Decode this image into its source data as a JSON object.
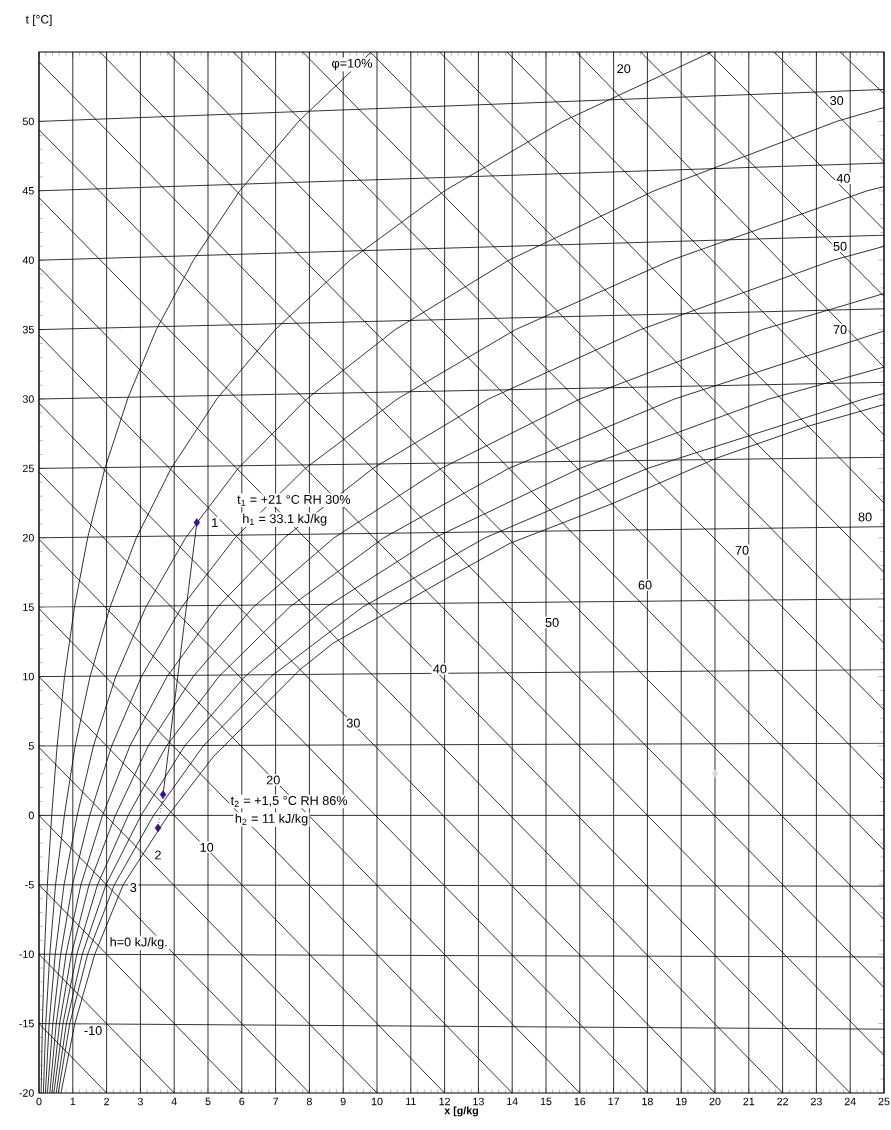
{
  "chart_data": {
    "type": "line",
    "xlabel": "x [g/kg",
    "ylabel": "t [°C]",
    "xlim": [
      0,
      25
    ],
    "ylim": [
      -20,
      55
    ],
    "xticks": [
      0,
      1,
      2,
      3,
      4,
      5,
      6,
      7,
      8,
      9,
      10,
      11,
      12,
      13,
      14,
      15,
      16,
      17,
      18,
      19,
      20,
      21,
      22,
      23,
      24,
      25
    ],
    "yticks": [
      -20,
      -15,
      -10,
      -5,
      0,
      5,
      10,
      15,
      20,
      25,
      30,
      35,
      40,
      45,
      50
    ],
    "grid": "x",
    "series": [
      {
        "color": "#000000",
        "x": [
          0,
          25
        ],
        "values": [
          50,
          52.3
        ]
      },
      {
        "color": "#000000",
        "x": [
          0,
          25
        ],
        "values": [
          45,
          47.0
        ]
      },
      {
        "color": "#000000",
        "x": [
          0,
          25
        ],
        "values": [
          40,
          41.8
        ]
      },
      {
        "color": "#000000",
        "x": [
          0,
          25
        ],
        "values": [
          35,
          36.5
        ]
      },
      {
        "color": "#000000",
        "x": [
          0,
          25
        ],
        "values": [
          30,
          31.2
        ]
      },
      {
        "color": "#000000",
        "x": [
          0,
          25
        ],
        "values": [
          25,
          25.8
        ]
      },
      {
        "color": "#000000",
        "x": [
          0,
          25
        ],
        "values": [
          20,
          20.8
        ]
      },
      {
        "color": "#000000",
        "x": [
          0,
          25
        ],
        "values": [
          15,
          15.6
        ]
      },
      {
        "color": "#000000",
        "x": [
          0,
          25
        ],
        "values": [
          10,
          10.5
        ]
      },
      {
        "color": "#000000",
        "x": [
          0,
          25
        ],
        "values": [
          5,
          5.2
        ]
      },
      {
        "color": "#000000",
        "x": [
          0,
          25
        ],
        "values": [
          0,
          0
        ]
      },
      {
        "color": "#000000",
        "x": [
          0,
          25
        ],
        "values": [
          -5,
          -5.1
        ]
      },
      {
        "color": "#000000",
        "x": [
          0,
          25
        ],
        "values": [
          -10,
          -10.2
        ]
      },
      {
        "color": "#000000",
        "x": [
          0,
          25
        ],
        "values": [
          -15,
          -15.4
        ]
      },
      {
        "color": "#000000",
        "x": [
          0,
          2
        ],
        "values": [
          -15,
          -20
        ]
      },
      {
        "color": "#000000",
        "x": [
          0,
          4
        ],
        "values": [
          -10,
          -20
        ]
      },
      {
        "color": "#000000",
        "x": [
          0,
          6
        ],
        "values": [
          -5,
          -20
        ]
      },
      {
        "color": "#000000",
        "x": [
          0,
          8
        ],
        "values": [
          0,
          -20
        ]
      },
      {
        "color": "#000000",
        "x": [
          0,
          10
        ],
        "values": [
          4.9,
          -20
        ]
      },
      {
        "color": "#000000",
        "x": [
          0,
          12
        ],
        "values": [
          10,
          -20
        ]
      },
      {
        "color": "#000000",
        "x": [
          0,
          14
        ],
        "values": [
          14.9,
          -20
        ]
      },
      {
        "color": "#000000",
        "x": [
          0,
          16
        ],
        "values": [
          19.9,
          -20
        ]
      },
      {
        "color": "#000000",
        "x": [
          0,
          18
        ],
        "values": [
          24.75,
          -20
        ]
      },
      {
        "color": "#000000",
        "x": [
          0,
          20
        ],
        "values": [
          29.7,
          -20
        ]
      },
      {
        "color": "#000000",
        "x": [
          0,
          22
        ],
        "values": [
          34.6,
          -20
        ]
      },
      {
        "color": "#000000",
        "x": [
          0,
          24
        ],
        "values": [
          39.5,
          -20
        ]
      },
      {
        "color": "#000000",
        "x": [
          0,
          25
        ],
        "values": [
          44.5,
          -17.3
        ]
      },
      {
        "color": "#000000",
        "x": [
          0,
          25
        ],
        "values": [
          49.4,
          -12.4
        ]
      },
      {
        "color": "#000000",
        "x": [
          0,
          25
        ],
        "values": [
          54.3,
          -7.5
        ]
      },
      {
        "color": "#000000",
        "x": [
          1.8,
          25
        ],
        "values": [
          55,
          -2.5
        ]
      },
      {
        "color": "#000000",
        "x": [
          3.8,
          25
        ],
        "values": [
          55,
          2.55
        ]
      },
      {
        "color": "#000000",
        "x": [
          5.75,
          25
        ],
        "values": [
          55,
          7.6
        ]
      },
      {
        "color": "#000000",
        "x": [
          7.8,
          25
        ],
        "values": [
          55,
          12.4
        ]
      },
      {
        "color": "#000000",
        "x": [
          9.8,
          25
        ],
        "values": [
          55,
          17.5
        ]
      },
      {
        "color": "#000000",
        "x": [
          11.85,
          25
        ],
        "values": [
          55,
          22.5
        ]
      },
      {
        "color": "#000000",
        "x": [
          13.85,
          25
        ],
        "values": [
          55,
          27.4
        ]
      },
      {
        "color": "#000000",
        "x": [
          15.9,
          25
        ],
        "values": [
          55,
          32.3
        ]
      },
      {
        "color": "#000000",
        "x": [
          17.8,
          25
        ],
        "values": [
          55,
          37.4
        ]
      },
      {
        "color": "#000000",
        "x": [
          19.8,
          25
        ],
        "values": [
          55,
          42.2
        ]
      },
      {
        "color": "#000000",
        "x": [
          21.75,
          25
        ],
        "values": [
          55,
          47.1
        ]
      },
      {
        "color": "#000000",
        "x": [
          23.7,
          25
        ],
        "values": [
          55,
          52.0
        ]
      },
      {
        "color": "#000000",
        "x": [
          0.063,
          0.101,
          0.16,
          0.247,
          0.375,
          0.536,
          0.755,
          1.049,
          1.44,
          1.95,
          2.62,
          3.47,
          4.57,
          5.94,
          7.68,
          9.83
        ],
        "values": [
          -20,
          -15,
          -10,
          -5,
          0,
          5,
          10,
          15,
          20,
          25,
          30,
          35,
          40,
          45,
          50,
          55
        ]
      },
      {
        "color": "#000000",
        "x": [
          0.13,
          0.2,
          0.32,
          0.49,
          0.75,
          1.07,
          1.51,
          2.1,
          2.88,
          3.91,
          5.26,
          6.99,
          9.2,
          12.0,
          15.5,
          19.9
        ],
        "values": [
          -20,
          -15,
          -10,
          -5,
          0,
          5,
          10,
          15,
          20,
          25,
          30,
          35,
          40,
          45,
          50,
          55
        ]
      },
      {
        "color": "#000000",
        "x": [
          0.19,
          0.3,
          0.48,
          0.74,
          1.13,
          1.61,
          2.27,
          3.16,
          4.34,
          5.89,
          7.92,
          10.54,
          13.9,
          18.2,
          23.6,
          25
        ],
        "values": [
          -20,
          -15,
          -10,
          -5,
          0,
          5,
          10,
          15,
          20,
          25,
          30,
          35,
          40,
          45,
          50,
          51
        ]
      },
      {
        "color": "#000000",
        "x": [
          0.25,
          0.41,
          0.64,
          0.99,
          1.5,
          2.15,
          3.03,
          4.22,
          5.8,
          7.88,
          10.6,
          14.1,
          18.7,
          24.5,
          25
        ],
        "values": [
          -20,
          -15,
          -10,
          -5,
          0,
          5,
          10,
          15,
          20,
          25,
          30,
          35,
          40,
          45,
          45.3
        ]
      },
      {
        "color": "#000000",
        "x": [
          0.32,
          0.51,
          0.8,
          1.24,
          1.88,
          2.69,
          3.79,
          5.28,
          7.26,
          9.88,
          13.3,
          17.8,
          23.5,
          25
        ],
        "values": [
          -20,
          -15,
          -10,
          -5,
          0,
          5,
          10,
          15,
          20,
          25,
          30,
          35,
          40,
          41
        ]
      },
      {
        "color": "#000000",
        "x": [
          0.38,
          0.61,
          0.96,
          1.48,
          2.26,
          3.23,
          4.56,
          6.34,
          8.73,
          11.9,
          16,
          21.4,
          25
        ],
        "values": [
          -20,
          -15,
          -10,
          -5,
          0,
          5,
          10,
          15,
          20,
          25,
          30,
          35,
          37.6
        ]
      },
      {
        "color": "#000000",
        "x": [
          0.44,
          0.71,
          1.12,
          1.73,
          2.64,
          3.77,
          5.32,
          7.41,
          10.2,
          13.9,
          18.8,
          25
        ],
        "values": [
          -20,
          -15,
          -10,
          -5,
          0,
          5,
          10,
          15,
          20,
          25,
          30,
          34.9
        ]
      },
      {
        "color": "#000000",
        "x": [
          0.51,
          0.81,
          1.28,
          1.98,
          3.02,
          4.31,
          6.09,
          8.49,
          11.7,
          16,
          21.6,
          25
        ],
        "values": [
          -20,
          -15,
          -10,
          -5,
          0,
          5,
          10,
          15,
          20,
          25,
          30,
          32.3
        ]
      },
      {
        "color": "#000000",
        "x": [
          0.57,
          0.91,
          1.44,
          2.23,
          3.39,
          4.86,
          6.86,
          9.57,
          13.2,
          18,
          24.4,
          25
        ],
        "values": [
          -20,
          -15,
          -10,
          -5,
          0,
          5,
          10,
          15,
          20,
          25,
          30,
          30.4
        ]
      },
      {
        "color": "#000000",
        "x": [
          0.65,
          1.06,
          1.65,
          2.49,
          3.82,
          5.15,
          7.72,
          8.7,
          11.86,
          13.93,
          17.0,
          20.06,
          22.7,
          25
        ],
        "values": [
          -20,
          -15,
          -10,
          -5,
          0,
          4.2,
          10.5,
          12.4,
          16.8,
          19.6,
          22.5,
          25.75,
          28.0,
          29.6
        ]
      },
      {
        "color": "#000000",
        "x": [
          4.67,
          3.67
        ],
        "values": [
          21.1,
          1.5
        ]
      },
      {
        "color": "#000000",
        "line_style": "dotted",
        "x": [
          3.67,
          3.52
        ],
        "values": [
          1.5,
          -0.9
        ]
      },
      {
        "type": "scatter",
        "marker": "diamond",
        "color": "#3b1090",
        "x": [
          4.67,
          3.67,
          3.52
        ],
        "values": [
          21.1,
          1.5,
          -0.9
        ]
      },
      {
        "type": "scatter",
        "marker": "diamond",
        "color": "#d9d9d9",
        "x": [
          20
        ],
        "values": [
          3
        ]
      }
    ],
    "annotations": [
      "t$_{1}$ = +21 °C RH 30%",
      {
        "text": "h$_{1}$ = 33.1 kJ/kg",
        "x": 7.27,
        "y": 21.3
      },
      {
        "text": "1",
        "x": 5.2,
        "y": 21.1
      },
      {
        "text": "t$_{2}$ = +1,5 °C RH 86%",
        "x": 7.4,
        "y": 1.0
      },
      {
        "text": "h$_{2}$ = 11 kJ/kg",
        "x": 6.88,
        "y": -0.3
      },
      {
        "text": "2",
        "x": 3.52,
        "y": -2.85
      },
      {
        "text": "3",
        "x": 2.79,
        "y": -5.2
      },
      "h=0 kJ/kg.",
      {
        "text": "-10",
        "x": 1.6,
        "y": -15.5
      },
      {
        "text": "10",
        "x": 4.96,
        "y": -2.3
      },
      {
        "text": "20",
        "x": 6.93,
        "y": 2.55
      },
      {
        "text": "30",
        "x": 9.3,
        "y": 6.65
      },
      {
        "text": "40",
        "x": 11.86,
        "y": 10.55
      },
      {
        "text": "50",
        "x": 15.18,
        "y": 13.9
      },
      {
        "text": "60",
        "x": 17.93,
        "y": 16.6
      },
      {
        "text": "70",
        "x": 20.8,
        "y": 19.1
      },
      {
        "text": "80",
        "x": 24.44,
        "y": 21.5
      },
      {
        "text": "φ=10%",
        "x": 9.26,
        "y": 54.1
      },
      {
        "text": "20",
        "x": 17.3,
        "y": 53.8
      },
      {
        "text": "30",
        "x": 23.6,
        "y": 51.5
      },
      {
        "text": "40",
        "x": 23.8,
        "y": 45.9
      },
      {
        "text": "50",
        "x": 23.7,
        "y": 41.0
      },
      {
        "text": "70",
        "x": 23.7,
        "y": 35.0
      }
    ]
  }
}
